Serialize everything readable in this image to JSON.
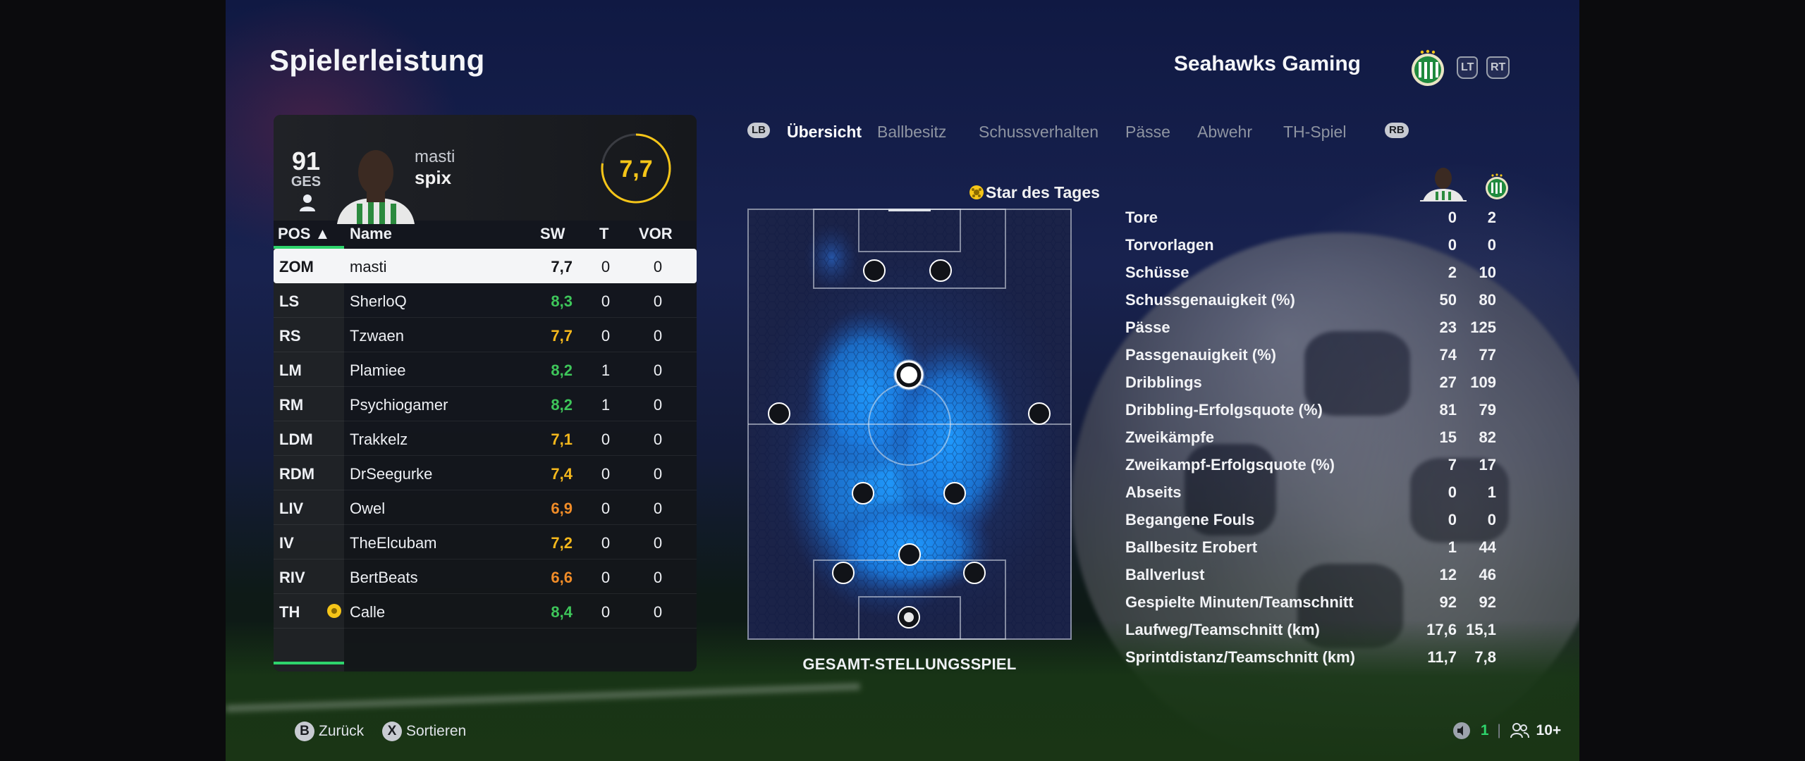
{
  "header": {
    "title": "Spielerleistung",
    "team_name": "Seahawks Gaming",
    "trigger_left": "LT",
    "trigger_right": "RT"
  },
  "player": {
    "overall": "91",
    "overall_label": "GES",
    "first_name": "masti",
    "last_name": "spix",
    "rating": "7,7"
  },
  "roster": {
    "headers": {
      "pos": "POS ▲",
      "name": "Name",
      "sw": "SW",
      "t": "T",
      "vor": "VOR"
    },
    "rows": [
      {
        "pos": "ZOM",
        "name": "masti",
        "sw": "7,7",
        "t": "0",
        "vor": "0",
        "color": "#15161a"
      },
      {
        "pos": "LS",
        "name": "SherloQ",
        "sw": "8,3",
        "t": "0",
        "vor": "0",
        "color": "#3ec65a"
      },
      {
        "pos": "RS",
        "name": "Tzwaen",
        "sw": "7,7",
        "t": "0",
        "vor": "0",
        "color": "#f5b81c"
      },
      {
        "pos": "LM",
        "name": "Plamiee",
        "sw": "8,2",
        "t": "1",
        "vor": "0",
        "color": "#3ec65a"
      },
      {
        "pos": "RM",
        "name": "Psychiogamer",
        "sw": "8,2",
        "t": "1",
        "vor": "0",
        "color": "#3ec65a"
      },
      {
        "pos": "LDM",
        "name": "Trakkelz",
        "sw": "7,1",
        "t": "0",
        "vor": "0",
        "color": "#f5b81c"
      },
      {
        "pos": "RDM",
        "name": "DrSeegurke",
        "sw": "7,4",
        "t": "0",
        "vor": "0",
        "color": "#f5b81c"
      },
      {
        "pos": "LIV",
        "name": "Owel",
        "sw": "6,9",
        "t": "0",
        "vor": "0",
        "color": "#f08c28"
      },
      {
        "pos": "IV",
        "name": "TheElcubam",
        "sw": "7,2",
        "t": "0",
        "vor": "0",
        "color": "#f5b81c"
      },
      {
        "pos": "RIV",
        "name": "BertBeats",
        "sw": "6,6",
        "t": "0",
        "vor": "0",
        "color": "#f08c28"
      },
      {
        "pos": "TH",
        "name": "Calle",
        "sw": "8,4",
        "t": "0",
        "vor": "0",
        "color": "#3ec65a",
        "star": true
      }
    ]
  },
  "tabs": {
    "left_bumper": "LB",
    "right_bumper": "RB",
    "items": [
      {
        "label": "Übersicht",
        "active": true
      },
      {
        "label": "Ballbesitz",
        "active": false
      },
      {
        "label": "Schussverhalten",
        "active": false
      },
      {
        "label": "Pässe",
        "active": false
      },
      {
        "label": "Abwehr",
        "active": false
      },
      {
        "label": "TH-Spiel",
        "active": false
      }
    ]
  },
  "pitch": {
    "star_label": "Star des Tages",
    "caption": "GESAMT-STELLUNGSSPIEL"
  },
  "stats": {
    "rows": [
      {
        "label": "Tore",
        "player": "0",
        "team": "2"
      },
      {
        "label": "Torvorlagen",
        "player": "0",
        "team": "0"
      },
      {
        "label": "Schüsse",
        "player": "2",
        "team": "10"
      },
      {
        "label": "Schussgenauigkeit (%)",
        "player": "50",
        "team": "80"
      },
      {
        "label": "Pässe",
        "player": "23",
        "team": "125"
      },
      {
        "label": "Passgenauigkeit (%)",
        "player": "74",
        "team": "77"
      },
      {
        "label": "Dribblings",
        "player": "27",
        "team": "109"
      },
      {
        "label": "Dribbling-Erfolgsquote (%)",
        "player": "81",
        "team": "79"
      },
      {
        "label": "Zweikämpfe",
        "player": "15",
        "team": "82"
      },
      {
        "label": "Zweikampf-Erfolgsquote (%)",
        "player": "7",
        "team": "17"
      },
      {
        "label": "Abseits",
        "player": "0",
        "team": "1"
      },
      {
        "label": "Begangene Fouls",
        "player": "0",
        "team": "0"
      },
      {
        "label": "Ballbesitz Erobert",
        "player": "1",
        "team": "44"
      },
      {
        "label": "Ballverlust",
        "player": "12",
        "team": "46"
      },
      {
        "label": "Gespielte Minuten/Teamschnitt",
        "player": "92",
        "team": "92"
      },
      {
        "label": "Laufweg/Teamschnitt (km)",
        "player": "17,6",
        "team": "15,1"
      },
      {
        "label": "Sprintdistanz/Teamschnitt (km)",
        "player": "11,7",
        "team": "7,8"
      }
    ]
  },
  "footer": {
    "back_key": "B",
    "back_label": "Zurück",
    "sort_key": "X",
    "sort_label": "Sortieren",
    "party_count": "1",
    "players_count": "10+"
  },
  "colors": {
    "accent_green": "#2ed46c",
    "rating_yellow": "#f5c518",
    "heat_blue": "#1a8cff"
  }
}
